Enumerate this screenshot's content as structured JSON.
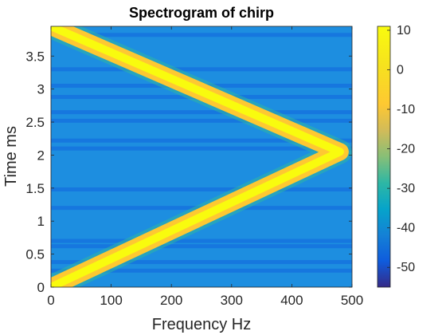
{
  "chart_data": {
    "type": "heatmap",
    "title": "Spectrogram of chirp",
    "xlabel": "Frequency Hz",
    "ylabel": "Time ms",
    "xlim": [
      0,
      500
    ],
    "ylim": [
      0,
      3.95
    ],
    "xticks": [
      0,
      100,
      200,
      300,
      400,
      500
    ],
    "xtick_labels": [
      "0",
      "100",
      "200",
      "300",
      "400",
      "500"
    ],
    "yticks": [
      0,
      0.5,
      1,
      1.5,
      2,
      2.5,
      3,
      3.5
    ],
    "ytick_labels": [
      "0",
      "0.5",
      "1",
      "1.5",
      "2",
      "2.5",
      "3",
      "3.5"
    ],
    "colormap": "parula",
    "colorbar": {
      "clim": [
        -55,
        11
      ],
      "ticks": [
        10,
        0,
        -10,
        -20,
        -30,
        -40,
        -50
      ],
      "tick_labels": [
        "10",
        "0",
        "-10",
        "-20",
        "-30",
        "-40",
        "-50"
      ]
    },
    "ridge": {
      "description": "V-shaped chirp: frequency rises linearly then falls",
      "points": [
        {
          "time_ms": 0.0,
          "freq_hz": 0
        },
        {
          "time_ms": 2.05,
          "freq_hz": 480
        },
        {
          "time_ms": 3.95,
          "freq_hz": 0
        }
      ],
      "peak_db": 10
    },
    "background_db": -35,
    "low_bands_ms": [
      0.25,
      0.38,
      0.62,
      0.7,
      1.2,
      1.48,
      2.1,
      2.22,
      2.52,
      2.65,
      2.88,
      3.05,
      3.3,
      3.82
    ]
  }
}
